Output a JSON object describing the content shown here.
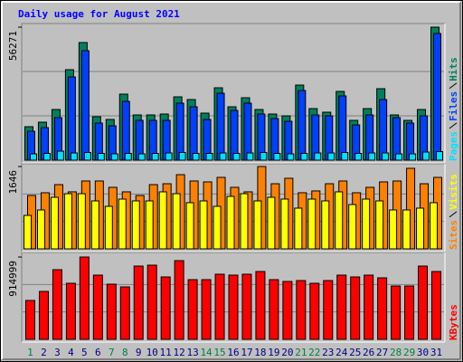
{
  "chart_data": [
    {
      "type": "bar",
      "title": "Daily usage for August 2021",
      "series": [
        {
          "name": "Pages",
          "color": "#00e0ff",
          "values": [
            2680,
            2870,
            3820,
            3060,
            3250,
            2870,
            2680,
            2870,
            2680,
            2870,
            3060,
            3250,
            2870,
            2870,
            3060,
            2870,
            3060,
            3250,
            2870,
            2680,
            2870,
            3060,
            3060,
            3250,
            2870,
            3060,
            3060,
            2680,
            2680,
            3440,
            3630
          ]
        },
        {
          "name": "Files",
          "color": "#0040ff",
          "values": [
            12250,
            13781,
            17992,
            35218,
            46320,
            15695,
            14547,
            24883,
            16843,
            16843,
            16843,
            24117,
            22586,
            17226,
            28327,
            21054,
            24117,
            19523,
            17609,
            16461,
            29476,
            19140,
            18757,
            27179,
            14929,
            19140,
            25648,
            17992,
            15695,
            18757,
            53593
          ]
        },
        {
          "name": "Hits",
          "color": "#00805c",
          "values": [
            14163,
            16077,
            21436,
            38280,
            49763,
            18374,
            17226,
            27944,
            19140,
            19140,
            19522,
            26795,
            25647,
            19905,
            30623,
            22585,
            26413,
            21436,
            19522,
            18757,
            31772,
            21819,
            20288,
            29092,
            16843,
            21819,
            30241,
            19140,
            16843,
            21436,
            56271
          ]
        }
      ],
      "ylim": [
        0,
        56271
      ],
      "yticks": [
        56271
      ]
    },
    {
      "type": "bar",
      "series": [
        {
          "name": "Sites",
          "color": "#ff8000",
          "values": [
            1067,
            1122,
            1284,
            1140,
            1357,
            1357,
            1230,
            1140,
            1067,
            1284,
            1302,
            1483,
            1357,
            1339,
            1429,
            1230,
            1140,
            1646,
            1302,
            1411,
            1122,
            1158,
            1302,
            1357,
            1122,
            1230,
            1339,
            1357,
            1610,
            1302,
            1429
          ]
        },
        {
          "name": "Visits",
          "color": "#ffff00",
          "values": [
            669,
            778,
            1031,
            1103,
            1103,
            959,
            850,
            995,
            959,
            959,
            1140,
            1103,
            923,
            959,
            850,
            1049,
            1103,
            959,
            1031,
            995,
            814,
            995,
            959,
            1140,
            886,
            995,
            959,
            778,
            778,
            814,
            923
          ]
        }
      ],
      "ylim": [
        0,
        1646
      ],
      "yticks": [
        1646
      ]
    },
    {
      "type": "bar",
      "series": [
        {
          "name": "KBytes",
          "color": "#ff0000",
          "values": [
            432365,
            532915,
            774235,
            623410,
            914999,
            713905,
            613355,
            583190,
            814455,
            824510,
            693795,
            874785,
            663630,
            663630,
            723960,
            713905,
            723960,
            754125,
            663630,
            643520,
            653575,
            623410,
            653575,
            713905,
            693795,
            713905,
            683740,
            593245,
            593245,
            814455,
            754125
          ]
        }
      ],
      "ylim": [
        0,
        914999
      ],
      "yticks": [
        914999
      ],
      "categories": [
        "1",
        "2",
        "3",
        "4",
        "5",
        "6",
        "7",
        "8",
        "9",
        "10",
        "11",
        "12",
        "13",
        "14",
        "15",
        "16",
        "17",
        "18",
        "19",
        "20",
        "21",
        "22",
        "23",
        "24",
        "25",
        "26",
        "27",
        "28",
        "29",
        "30",
        "31"
      ],
      "category_colors": [
        "#008040",
        "#000080",
        "#000080",
        "#000080",
        "#000080",
        "#000080",
        "#008040",
        "#008040",
        "#000080",
        "#000080",
        "#000080",
        "#000080",
        "#000080",
        "#008040",
        "#008040",
        "#000080",
        "#000080",
        "#000080",
        "#000080",
        "#000080",
        "#008040",
        "#008040",
        "#000080",
        "#000080",
        "#000080",
        "#000080",
        "#000080",
        "#008040",
        "#008040",
        "#000080",
        "#000080"
      ]
    }
  ]
}
